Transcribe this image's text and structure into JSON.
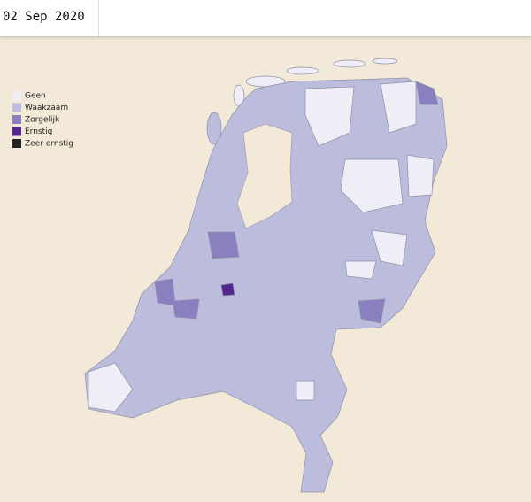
{
  "header": {
    "date": "02 Sep 2020"
  },
  "legend": {
    "items": [
      {
        "label": "Geen",
        "color": "#efedf5"
      },
      {
        "label": "Waakzaam",
        "color": "#bcbddc"
      },
      {
        "label": "Zorgelijk",
        "color": "#8a80c0"
      },
      {
        "label": "Ernstig",
        "color": "#54278f"
      },
      {
        "label": "Zeer ernstig",
        "color": "#222222"
      }
    ]
  }
}
